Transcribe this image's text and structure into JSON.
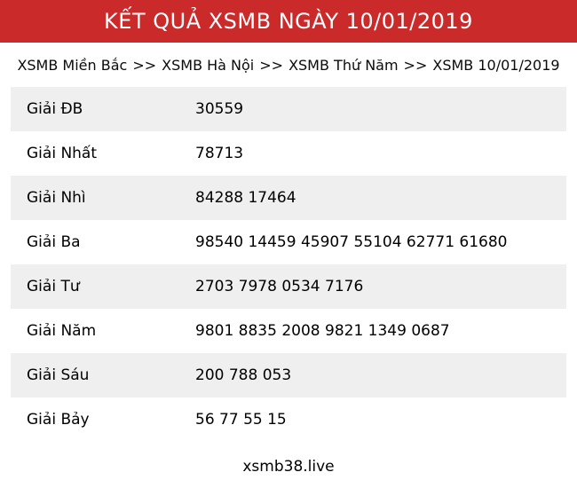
{
  "header": {
    "title": "KẾT QUẢ XSMB NGÀY 10/01/2019",
    "bg_color": "#cb2a2a",
    "text_color": "#ffffff"
  },
  "breadcrumb": {
    "separator": ">>",
    "items": [
      "XSMB Miền Bắc",
      "XSMB Hà Nội",
      "XSMB Thứ Năm",
      "XSMB 10/01/2019"
    ]
  },
  "results_table": {
    "row_alt_color": "#efefef",
    "rows": [
      {
        "label": "Giải ĐB",
        "numbers": "30559"
      },
      {
        "label": "Giải Nhất",
        "numbers": "78713"
      },
      {
        "label": "Giải Nhì",
        "numbers": "84288 17464"
      },
      {
        "label": "Giải Ba",
        "numbers": "98540 14459 45907 55104 62771 61680"
      },
      {
        "label": "Giải Tư",
        "numbers": "2703 7978 0534 7176"
      },
      {
        "label": "Giải Năm",
        "numbers": "9801 8835 2008 9821 1349 0687"
      },
      {
        "label": "Giải Sáu",
        "numbers": "200 788 053"
      },
      {
        "label": "Giải Bảy",
        "numbers": "56 77 55 15"
      }
    ]
  },
  "footer": {
    "site": "xsmb38.live"
  }
}
